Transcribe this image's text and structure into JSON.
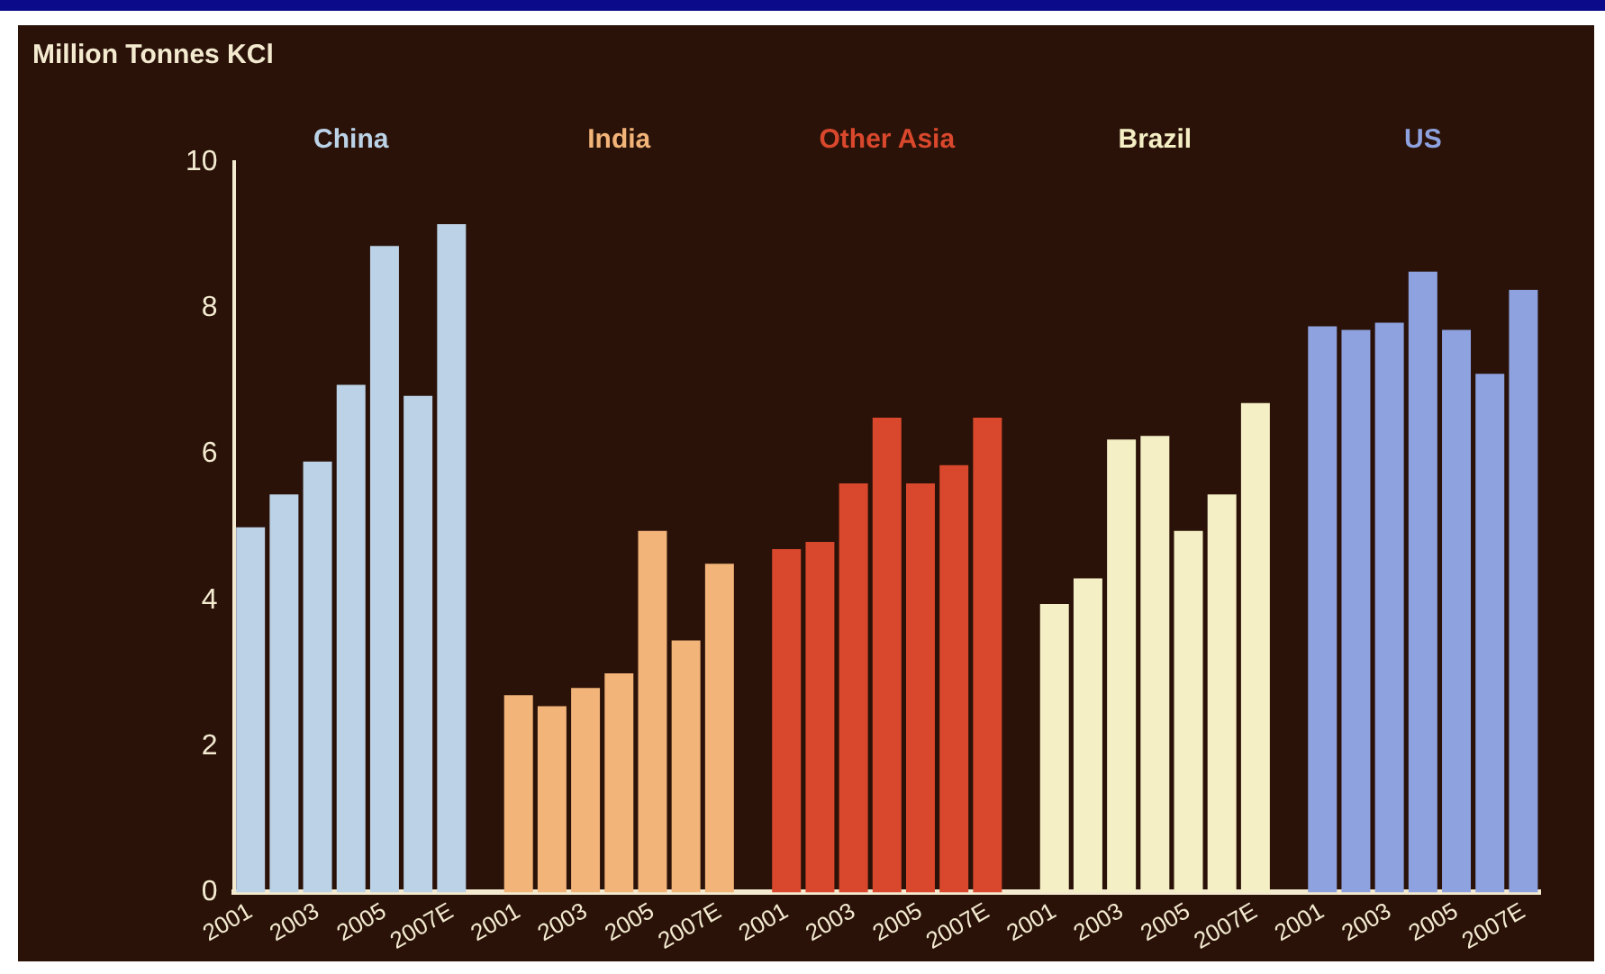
{
  "chart_data": {
    "type": "bar",
    "ylabel": "Million Tonnes KCl",
    "categories": [
      "2001",
      null,
      "2003",
      null,
      "2005",
      null,
      "2007E",
      null,
      "2001",
      null,
      "2003",
      null,
      "2005",
      null,
      "2007E",
      null,
      "2001",
      null,
      "2003",
      null,
      "2005",
      null,
      "2007E",
      null,
      "2001",
      null,
      "2003",
      null,
      "2005",
      null,
      "2007E",
      null,
      "2001",
      null,
      "2003",
      null,
      "2005",
      null,
      "2007E"
    ],
    "series": [
      {
        "name": "China",
        "color": "#bcd2e6",
        "values": [
          5.0,
          5.45,
          5.9,
          6.95,
          8.85,
          6.8,
          9.15,
          null,
          null,
          null,
          null,
          null,
          null,
          null,
          null,
          null,
          null,
          null,
          null,
          null,
          null,
          null,
          null,
          null,
          null,
          null,
          null,
          null,
          null,
          null,
          null,
          null,
          null,
          null,
          null,
          null,
          null,
          null,
          null
        ]
      },
      {
        "name": "India",
        "color": "#f2b478",
        "values": [
          null,
          null,
          null,
          null,
          null,
          null,
          null,
          null,
          2.7,
          2.55,
          2.8,
          3.0,
          4.95,
          3.45,
          4.5,
          null,
          null,
          null,
          null,
          null,
          null,
          null,
          null,
          null,
          null,
          null,
          null,
          null,
          null,
          null,
          null,
          null,
          null,
          null,
          null,
          null,
          null,
          null,
          null
        ]
      },
      {
        "name": "Other Asia",
        "color": "#d9482c",
        "values": [
          null,
          null,
          null,
          null,
          null,
          null,
          null,
          null,
          null,
          null,
          null,
          null,
          null,
          null,
          null,
          null,
          4.7,
          4.8,
          5.6,
          6.5,
          5.6,
          5.85,
          6.5,
          null,
          null,
          null,
          null,
          null,
          null,
          null,
          null,
          null,
          null,
          null,
          null,
          null,
          null,
          null,
          null
        ]
      },
      {
        "name": "Brazil",
        "color": "#f4efc4",
        "values": [
          null,
          null,
          null,
          null,
          null,
          null,
          null,
          null,
          null,
          null,
          null,
          null,
          null,
          null,
          null,
          null,
          null,
          null,
          null,
          null,
          null,
          null,
          null,
          null,
          3.95,
          4.3,
          6.2,
          6.25,
          4.95,
          5.45,
          6.7,
          null,
          null,
          null,
          null,
          null,
          null,
          null,
          null
        ]
      },
      {
        "name": "US",
        "color": "#8ea2e0",
        "values": [
          null,
          null,
          null,
          null,
          null,
          null,
          null,
          null,
          null,
          null,
          null,
          null,
          null,
          null,
          null,
          null,
          null,
          null,
          null,
          null,
          null,
          null,
          null,
          null,
          null,
          null,
          null,
          null,
          null,
          null,
          null,
          null,
          7.75,
          7.7,
          7.8,
          8.5,
          7.7,
          7.1,
          8.25
        ]
      }
    ],
    "ylim": [
      0,
      10
    ],
    "yticks": [
      0,
      2,
      4,
      6,
      8,
      10
    ],
    "grid": false,
    "legend": false
  }
}
